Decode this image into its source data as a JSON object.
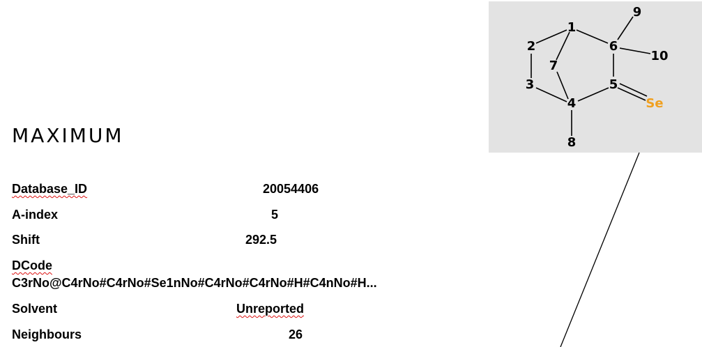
{
  "title": "MAXIMUM",
  "fields": {
    "database_id": {
      "label": "Database_ID",
      "value": "20054406"
    },
    "a_index": {
      "label": "A-index",
      "value": "5"
    },
    "shift": {
      "label": "Shift",
      "value": "292.5"
    },
    "dcode": {
      "label": "DCode",
      "value": "C3rNo@C4rNo#C4rNo#Se1nNo#C4rNo#C4rNo#H#C4nNo#H..."
    },
    "solvent": {
      "label": "Solvent",
      "value": "Unreported"
    },
    "neighbours": {
      "label": "Neighbours",
      "value": "26"
    }
  },
  "molecule": {
    "atom_labels": [
      "1",
      "2",
      "3",
      "4",
      "5",
      "6",
      "7",
      "8",
      "9",
      "10",
      "Se"
    ],
    "heteroatom_color": "#f0a020"
  }
}
